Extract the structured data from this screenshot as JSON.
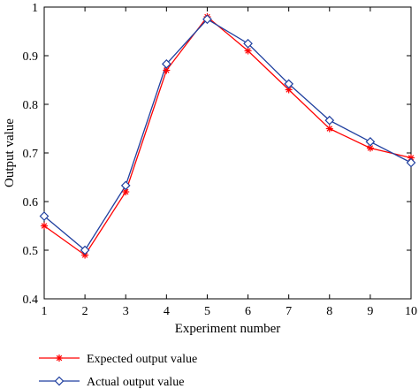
{
  "chart_data": {
    "type": "line",
    "title": "",
    "xlabel": "Experiment number",
    "ylabel": "Output value",
    "xlim": [
      1,
      10
    ],
    "ylim": [
      0.4,
      1.0
    ],
    "x_ticks": [
      "1",
      "2",
      "3",
      "4",
      "5",
      "6",
      "7",
      "8",
      "9",
      "10"
    ],
    "y_ticks": [
      "0.4",
      "0.5",
      "0.6",
      "0.7",
      "0.8",
      "0.9",
      "1"
    ],
    "grid": false,
    "legend_position": "bottom",
    "x": [
      1,
      2,
      3,
      4,
      5,
      6,
      7,
      8,
      9,
      10
    ],
    "series": [
      {
        "name": "Expected output value",
        "color": "#ff0000",
        "marker": "asterisk",
        "values": [
          0.55,
          0.49,
          0.62,
          0.87,
          0.98,
          0.91,
          0.83,
          0.75,
          0.71,
          0.69
        ]
      },
      {
        "name": "Actual output value",
        "color": "#1f3f9f",
        "marker": "diamond",
        "values": [
          0.57,
          0.5,
          0.633,
          0.883,
          0.975,
          0.925,
          0.842,
          0.767,
          0.723,
          0.68
        ]
      }
    ]
  }
}
